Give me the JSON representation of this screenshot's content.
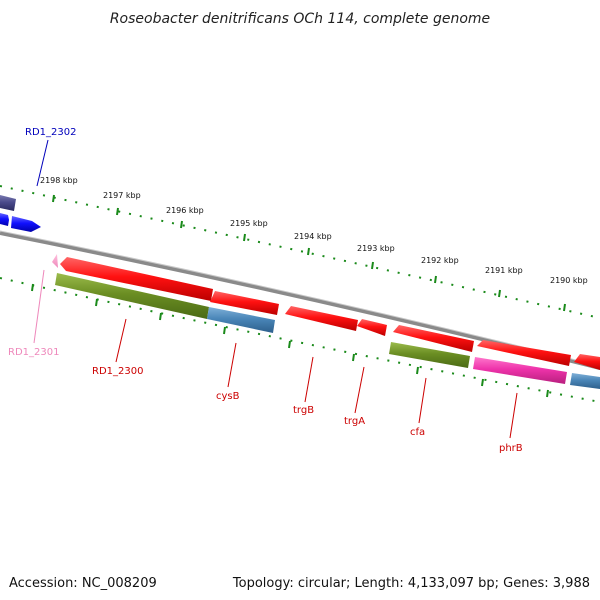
{
  "title": "Roseobacter denitrificans OCh 114, complete genome",
  "footer": {
    "accession": "Accession: NC_008209",
    "summary": "Topology: circular; Length: 4,133,097 bp; Genes: 3,988"
  },
  "scale_labels": [
    "2198 kbp",
    "2197 kbp",
    "2196 kbp",
    "2195 kbp",
    "2194 kbp",
    "2193 kbp",
    "2192 kbp",
    "2191 kbp",
    "2190 kbp"
  ],
  "genes": [
    {
      "label": "RD1_2302",
      "color": "#0000bb"
    },
    {
      "label": "RD1_2301",
      "color": "#ee88bb"
    },
    {
      "label": "RD1_2300",
      "color": "#cc0000"
    },
    {
      "label": "cysB",
      "color": "#cc0000"
    },
    {
      "label": "trgB",
      "color": "#cc0000"
    },
    {
      "label": "trgA",
      "color": "#cc0000"
    },
    {
      "label": "cfa",
      "color": "#cc0000"
    },
    {
      "label": "phrB",
      "color": "#cc0000"
    }
  ],
  "colors": {
    "backbone": "#888888",
    "tick": "#1a8a1a",
    "forward_cds": "#ee1111",
    "reverse_cds": "#2222ee",
    "olive_rna": "#6b8e23",
    "steel_blue": "#4a86b8",
    "magenta": "#ee33aa",
    "navy": "#4a4a8c"
  }
}
